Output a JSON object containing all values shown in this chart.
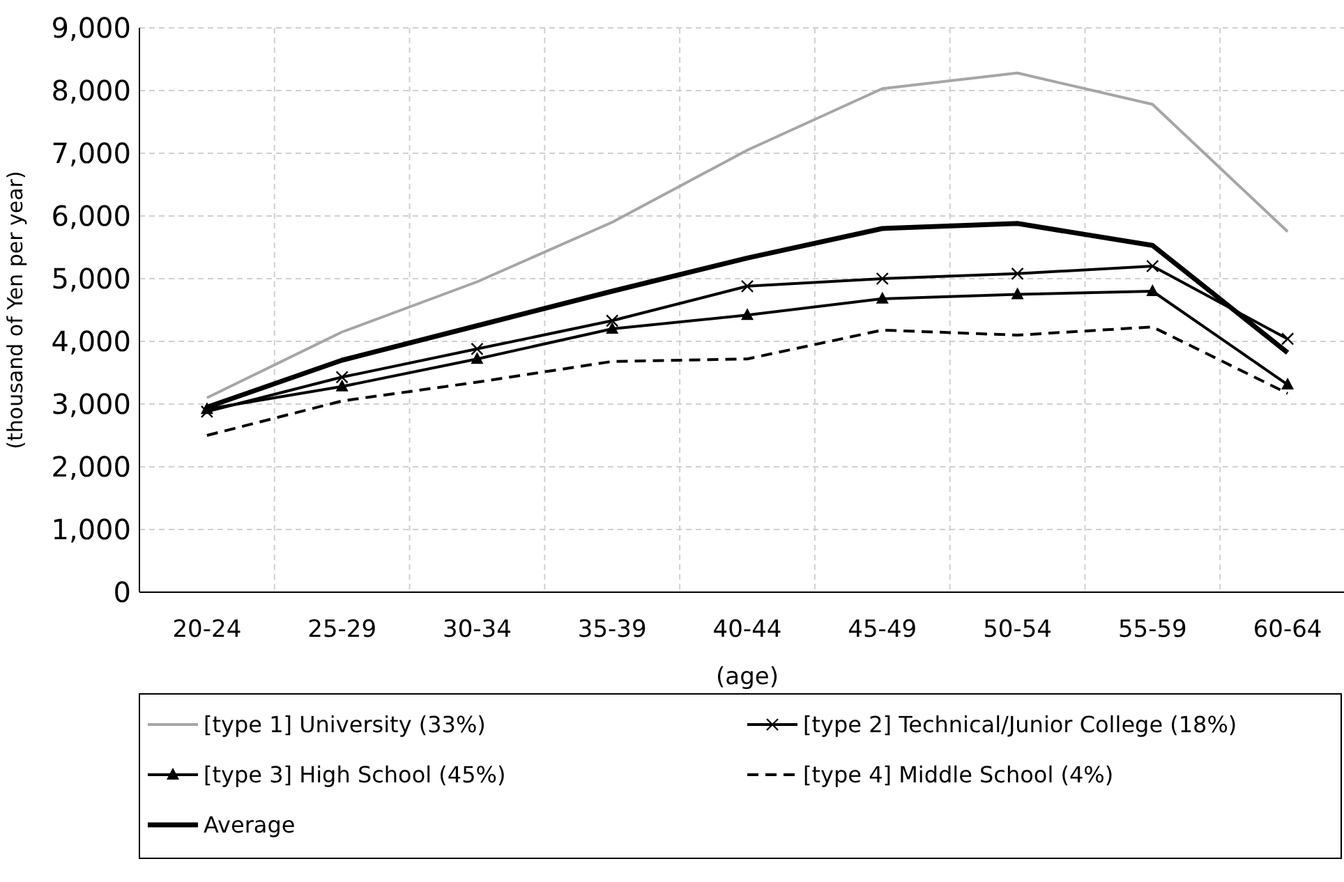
{
  "chart_data": {
    "type": "line",
    "xlabel": "(age)",
    "ylabel": "(thousand of Yen per year)",
    "categories": [
      "20-24",
      "25-29",
      "30-34",
      "35-39",
      "40-44",
      "45-49",
      "50-54",
      "55-59",
      "60-64"
    ],
    "ylim": [
      0,
      9000
    ],
    "yticks": [
      {
        "value": 0,
        "label": "0"
      },
      {
        "value": 1000,
        "label": "1,000"
      },
      {
        "value": 2000,
        "label": "2,000"
      },
      {
        "value": 3000,
        "label": "3,000"
      },
      {
        "value": 4000,
        "label": "4,000"
      },
      {
        "value": 5000,
        "label": "5,000"
      },
      {
        "value": 6000,
        "label": "6,000"
      },
      {
        "value": 7000,
        "label": "7,000"
      },
      {
        "value": 8000,
        "label": "8,000"
      },
      {
        "value": 9000,
        "label": "9,000"
      }
    ],
    "grid": true,
    "legend": "bottom",
    "series": [
      {
        "name": "[type 1] University (33%)",
        "color": "#a6a6a6",
        "marker": "none",
        "line_style": "solid",
        "values": [
          3100,
          4150,
          4950,
          5900,
          7050,
          8030,
          8280,
          7780,
          5750
        ]
      },
      {
        "name": "[type 2] Technical/Junior College (18%)",
        "color": "#000000",
        "marker": "cross",
        "line_style": "solid",
        "values": [
          2880,
          3430,
          3880,
          4330,
          4880,
          5000,
          5080,
          5200,
          4040
        ]
      },
      {
        "name": "[type 3] High School (45%)",
        "color": "#000000",
        "marker": "triangle",
        "line_style": "solid",
        "values": [
          2920,
          3280,
          3720,
          4200,
          4420,
          4680,
          4750,
          4800,
          3310
        ]
      },
      {
        "name": "[type 4] Middle School (4%)",
        "color": "#000000",
        "marker": "none",
        "line_style": "dashed",
        "values": [
          2500,
          3050,
          3350,
          3680,
          3720,
          4180,
          4100,
          4230,
          3170
        ]
      },
      {
        "name": "Average",
        "color": "#000000",
        "marker": "none",
        "line_style": "solid",
        "values": [
          2950,
          3700,
          4250,
          4800,
          5330,
          5800,
          5880,
          5530,
          3820
        ]
      }
    ]
  }
}
